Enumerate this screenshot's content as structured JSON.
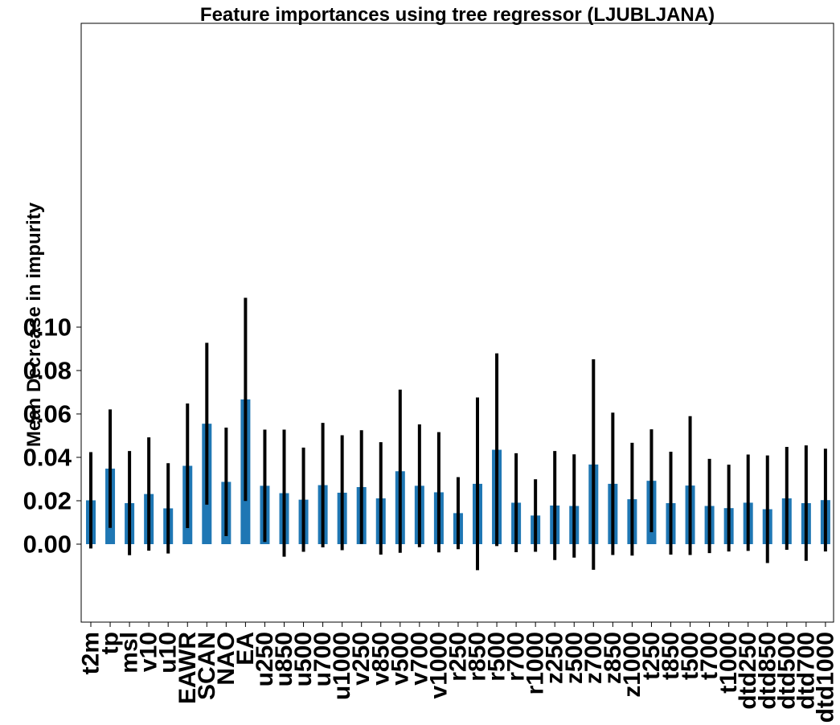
{
  "chart_data": {
    "type": "bar",
    "title": "Feature importances using tree regressor (LJUBLJANA)",
    "xlabel": "",
    "ylabel": "Mean Decrease in impurity",
    "ylim": [
      -0.018,
      0.12
    ],
    "yticks": [
      "0.00",
      "0.02",
      "0.04",
      "0.06",
      "0.08",
      "0.10"
    ],
    "bar_color": "#1f77b4",
    "errorbar_color": "#000000",
    "grid": false,
    "categories": [
      "t2m",
      "tp",
      "msl",
      "v10",
      "u10",
      "EAWR",
      "SCAN",
      "NAO",
      "EA",
      "u250",
      "u850",
      "u500",
      "u700",
      "u1000",
      "v250",
      "v850",
      "v500",
      "v700",
      "v1000",
      "r250",
      "r850",
      "r500",
      "r700",
      "r1000",
      "z250",
      "z500",
      "z700",
      "z850",
      "z1000",
      "t250",
      "t850",
      "t500",
      "t700",
      "t1000",
      "dtd250",
      "dtd850",
      "dtd500",
      "dtd700",
      "dtd1000"
    ],
    "values": [
      0.0202,
      0.0348,
      0.0189,
      0.0231,
      0.0165,
      0.0361,
      0.0555,
      0.0287,
      0.0667,
      0.0269,
      0.0235,
      0.0205,
      0.0272,
      0.0237,
      0.0263,
      0.0211,
      0.0336,
      0.0269,
      0.0239,
      0.0143,
      0.0278,
      0.0435,
      0.0191,
      0.0132,
      0.0178,
      0.0176,
      0.0367,
      0.0278,
      0.0207,
      0.0292,
      0.0189,
      0.027,
      0.0176,
      0.0166,
      0.0191,
      0.0161,
      0.0211,
      0.0189,
      0.0203
    ],
    "errors": [
      0.0222,
      0.0273,
      0.024,
      0.0261,
      0.0208,
      0.0287,
      0.0373,
      0.025,
      0.0468,
      0.0259,
      0.0293,
      0.024,
      0.0287,
      0.0265,
      0.0262,
      0.0259,
      0.0376,
      0.0283,
      0.0277,
      0.0166,
      0.0398,
      0.0444,
      0.0228,
      0.0167,
      0.0251,
      0.0238,
      0.0485,
      0.0328,
      0.026,
      0.0237,
      0.0237,
      0.032,
      0.0217,
      0.02,
      0.0222,
      0.0248,
      0.0237,
      0.0266,
      0.0237
    ]
  }
}
